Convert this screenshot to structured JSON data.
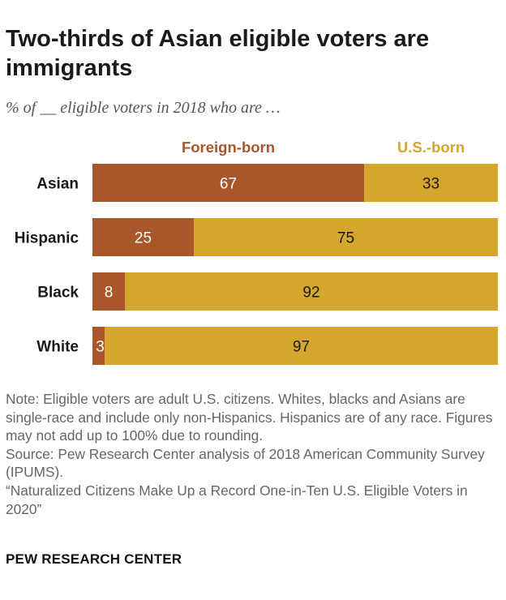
{
  "header": {
    "title": "Two-thirds of Asian eligible voters are immigrants",
    "subtitle": "% of __ eligible voters in 2018 who are …"
  },
  "chart_data": {
    "type": "bar",
    "orientation": "horizontal",
    "stacked": true,
    "title": "Two-thirds of Asian eligible voters are immigrants",
    "subtitle": "% of __ eligible voters in 2018 who are …",
    "categories": [
      "Asian",
      "Hispanic",
      "Black",
      "White"
    ],
    "series": [
      {
        "name": "Foreign-born",
        "color": "#a8562a",
        "label_color": "#ffffff",
        "values": [
          67,
          25,
          8,
          3
        ]
      },
      {
        "name": "U.S.-born",
        "color": "#d4a72c",
        "label_color": "#1a1a1a",
        "values": [
          33,
          75,
          92,
          97
        ]
      }
    ],
    "xlim": [
      0,
      100
    ],
    "grid": false,
    "legend": "top, above the bars"
  },
  "footer": {
    "note": "Note: Eligible voters are adult U.S. citizens. Whites, blacks and Asians are single-race and include only non-Hispanics. Hispanics are of any race. Figures may not add up to 100% due to rounding.",
    "source": "Source: Pew Research Center analysis of 2018 American Community Survey (IPUMS).",
    "report": "“Naturalized Citizens Make Up a Record One-in-Ten U.S. Eligible Voters in 2020”",
    "brand": "PEW RESEARCH CENTER"
  }
}
